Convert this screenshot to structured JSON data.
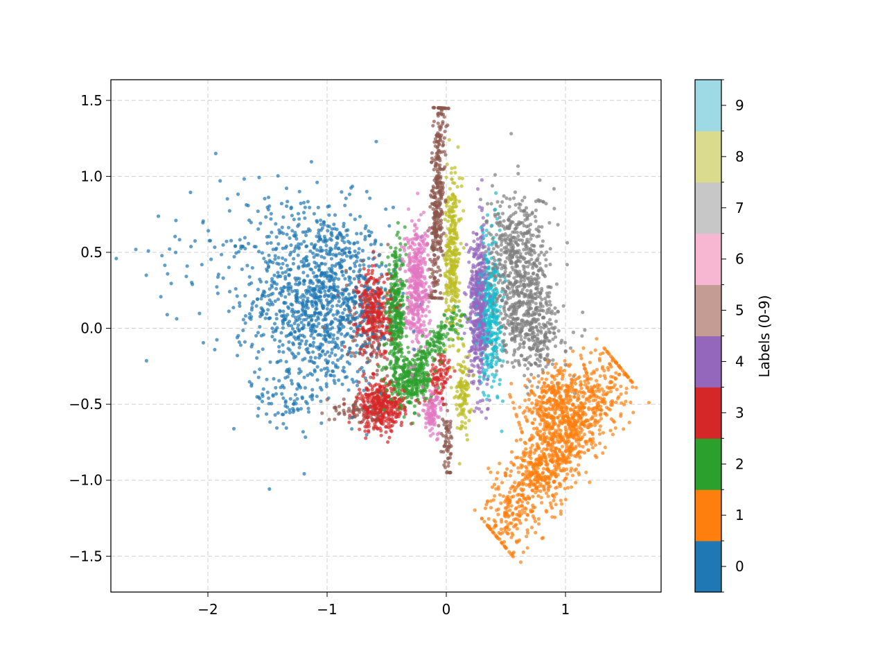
{
  "chart_data": {
    "type": "scatter",
    "title": "",
    "xlabel": "",
    "ylabel": "",
    "xlim": [
      -2.814,
      1.802
    ],
    "ylim": [
      -1.736,
      1.636
    ],
    "grid": true,
    "xticks": [
      -2,
      -1,
      0,
      1
    ],
    "xtick_labels": [
      "−2",
      "−1",
      "0",
      "1"
    ],
    "yticks": [
      1.5,
      1.0,
      0.5,
      0.0,
      -0.5,
      -1.0,
      -1.5
    ],
    "ytick_labels": [
      "1.5",
      "1.0",
      "0.5",
      "0.0",
      "−0.5",
      "−1.0",
      "−1.5"
    ],
    "colorbar": {
      "label": "Labels (0-9)",
      "ticks": [
        "0",
        "1",
        "2",
        "3",
        "4",
        "5",
        "6",
        "7",
        "8",
        "9"
      ],
      "colors": [
        "#1f77b4",
        "#ff7f0e",
        "#2ca02c",
        "#d62728",
        "#9467bd",
        "#8c564b",
        "#e377c2",
        "#7f7f7f",
        "#bcbd22",
        "#17becf"
      ],
      "display_colors": [
        "#1f77b4",
        "#ff7f0e",
        "#2ca02c",
        "#d62728",
        "#9467bd",
        "#c49c94",
        "#f7b6d2",
        "#c7c7c7",
        "#dbdb8d",
        "#9edae5"
      ]
    },
    "clusters_note": "approximate point clouds per label: center [x,y], spread [sx,sy], count n; segments from a to b with width w",
    "clusters": [
      {
        "label": 0,
        "blobs": [
          {
            "c": [
              -1.05,
              0.2
            ],
            "s": [
              0.28,
              0.3
            ],
            "n": 1100
          },
          {
            "c": [
              -1.7,
              0.5
            ],
            "s": [
              0.4,
              0.3
            ],
            "n": 120
          },
          {
            "c": [
              -1.3,
              -0.45
            ],
            "s": [
              0.15,
              0.1
            ],
            "n": 80
          }
        ]
      },
      {
        "label": 1,
        "segments": [
          {
            "a": [
              0.4,
              -1.35
            ],
            "b": [
              1.45,
              -0.25
            ],
            "w": 0.12,
            "n": 1100
          },
          {
            "a": [
              0.6,
              -0.6
            ],
            "b": [
              1.2,
              -0.35
            ],
            "w": 0.1,
            "n": 300
          }
        ]
      },
      {
        "label": 2,
        "blobs": [
          {
            "c": [
              -0.42,
              0.1
            ],
            "s": [
              0.04,
              0.2
            ],
            "n": 300
          },
          {
            "c": [
              -0.3,
              -0.35
            ],
            "s": [
              0.09,
              0.08
            ],
            "n": 300
          }
        ],
        "segments": [
          {
            "a": [
              -0.3,
              -0.3
            ],
            "b": [
              0.12,
              0.12
            ],
            "w": 0.04,
            "n": 150
          }
        ]
      },
      {
        "label": 3,
        "blobs": [
          {
            "c": [
              -0.6,
              0.1
            ],
            "s": [
              0.07,
              0.15
            ],
            "n": 300
          },
          {
            "c": [
              -0.55,
              -0.52
            ],
            "s": [
              0.1,
              0.08
            ],
            "n": 350
          },
          {
            "c": [
              -0.05,
              -0.32
            ],
            "s": [
              0.05,
              0.08
            ],
            "n": 80
          }
        ]
      },
      {
        "label": 4,
        "blobs": [
          {
            "c": [
              0.27,
              0.15
            ],
            "s": [
              0.04,
              0.25
            ],
            "n": 450
          }
        ]
      },
      {
        "label": 5,
        "segments": [
          {
            "a": [
              -0.05,
              1.45
            ],
            "b": [
              -0.1,
              0.2
            ],
            "w": 0.03,
            "n": 350
          },
          {
            "a": [
              0.0,
              -0.5
            ],
            "b": [
              0.02,
              -0.95
            ],
            "w": 0.02,
            "n": 60
          }
        ],
        "blobs": [
          {
            "c": [
              -0.65,
              0.0
            ],
            "s": [
              0.12,
              0.2
            ],
            "n": 120
          },
          {
            "c": [
              -0.75,
              -0.55
            ],
            "s": [
              0.1,
              0.04
            ],
            "n": 60
          }
        ]
      },
      {
        "label": 6,
        "blobs": [
          {
            "c": [
              -0.25,
              0.3
            ],
            "s": [
              0.05,
              0.2
            ],
            "n": 400
          },
          {
            "c": [
              -0.12,
              -0.55
            ],
            "s": [
              0.04,
              0.08
            ],
            "n": 100
          }
        ]
      },
      {
        "label": 7,
        "blobs": [
          {
            "c": [
              0.6,
              0.45
            ],
            "s": [
              0.13,
              0.22
            ],
            "n": 500
          },
          {
            "c": [
              0.7,
              0.0
            ],
            "s": [
              0.14,
              0.15
            ],
            "n": 400
          }
        ]
      },
      {
        "label": 8,
        "blobs": [
          {
            "c": [
              0.05,
              0.5
            ],
            "s": [
              0.03,
              0.25
            ],
            "n": 300
          },
          {
            "c": [
              0.14,
              -0.4
            ],
            "s": [
              0.03,
              0.15
            ],
            "n": 120
          }
        ]
      },
      {
        "label": 9,
        "blobs": [
          {
            "c": [
              0.37,
              0.1
            ],
            "s": [
              0.05,
              0.25
            ],
            "n": 350
          }
        ]
      }
    ]
  }
}
